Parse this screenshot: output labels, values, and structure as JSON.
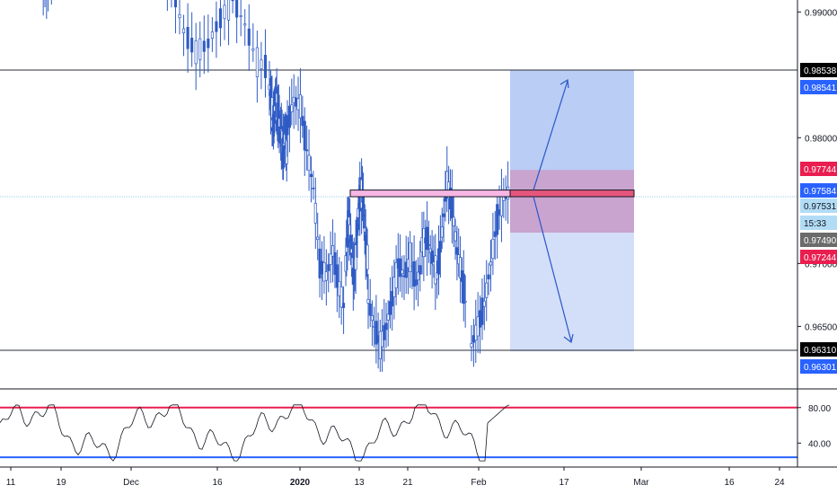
{
  "chart_data": {
    "type": "candlestick",
    "symbol_note": "",
    "price_axis": {
      "range": [
        0.961,
        1.0
      ],
      "ticks": [
        "0.99000",
        "0.98000",
        "0.97000",
        "0.96500"
      ]
    },
    "time_axis": {
      "labels": [
        "11",
        "19",
        "Dec",
        "16",
        "2020",
        "13",
        "21",
        "Feb",
        "17",
        "Mar",
        "16",
        "24"
      ],
      "bold": [
        "2020"
      ]
    },
    "series": [
      {
        "type": "candlestick",
        "close_path": [
          [
            0.999,
            0.9978,
            0.996,
            0.9935,
            0.9918,
            0.9932,
            0.995,
            0.9965,
            0.9978,
            0.9985,
            0.997,
            0.9985
          ],
          [
            0.9992,
            0.9975,
            0.995,
            0.992,
            0.9885,
            0.9868,
            0.9875,
            0.9895,
            0.991,
            0.989,
            0.986,
            0.9855
          ],
          [
            0.984,
            0.9825,
            0.981,
            0.983,
            0.9822,
            0.9812,
            0.98,
            0.979,
            0.9805,
            0.978
          ],
          [
            0.981,
            0.983,
            0.9825,
            0.979,
            0.976,
            0.97,
            0.969,
            0.971,
            0.968,
            0.966
          ],
          [
            0.97,
            0.9735,
            0.972,
            0.969,
            0.9705,
            0.974,
            0.9758,
            0.975,
            0.9715,
            0.97
          ],
          [
            0.967,
            0.965,
            0.9635,
            0.965,
            0.9672,
            0.97,
            0.969,
            0.9705,
            0.9685,
            0.97
          ],
          [
            0.9715,
            0.972,
            0.9705,
            0.969,
            0.9725,
            0.9765,
            0.9745,
            0.971,
            0.969,
            0.966
          ],
          [
            0.9635,
            0.965,
            0.9668,
            0.97,
            0.9735,
            0.9752,
            0.9758
          ]
        ]
      },
      {
        "type": "oscillator",
        "levels": [
          80,
          40
        ],
        "ticks": [
          "80.00",
          "40.00"
        ],
        "range": [
          15,
          100
        ]
      }
    ],
    "horizontal_lines": [
      0.98538,
      0.9631
    ],
    "current_price_line": 0.97531,
    "zone": {
      "top": 0.97584,
      "bottom": 0.97531
    },
    "position": {
      "entry": 0.97584,
      "target": 0.98541,
      "stop_top": 0.97744,
      "stop_bottom": 0.97244,
      "lower_target": 0.96301
    },
    "price_labels": [
      {
        "value": "0.98538",
        "color": "#000000"
      },
      {
        "value": "0.98541",
        "color": "#2962ff"
      },
      {
        "value": "0.97744",
        "color": "#e91e4f"
      },
      {
        "value": "0.97584",
        "color": "#2962ff"
      },
      {
        "value": "0.97531",
        "color": "#b2dcf5"
      },
      {
        "value": "15:33",
        "color": "#b2dcf5"
      },
      {
        "value": "0.97490",
        "color": "#6b6b6b"
      },
      {
        "value": "0.97244",
        "color": "#e91e4f"
      },
      {
        "value": "0.96310",
        "color": "#000000"
      },
      {
        "value": "0.96301",
        "color": "#2962ff"
      }
    ]
  }
}
